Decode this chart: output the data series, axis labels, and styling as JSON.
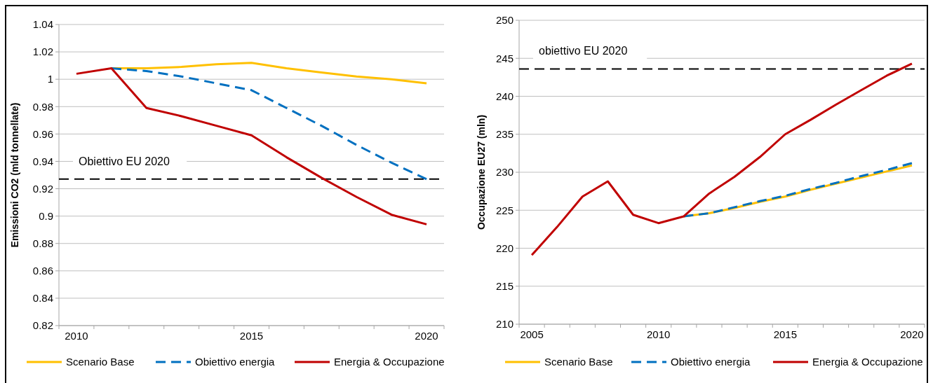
{
  "chart_data": [
    {
      "type": "line",
      "ylabel": "Emissioni CO2 (mld tonnellate)",
      "categories": [
        "2010",
        null,
        null,
        null,
        null,
        "2015",
        null,
        null,
        null,
        null,
        "2020"
      ],
      "ylim": [
        0.82,
        1.04
      ],
      "yticks": [
        0.82,
        0.84,
        0.86,
        0.88,
        0.9,
        0.92,
        0.94,
        0.96,
        0.98,
        1,
        1.02,
        1.04
      ],
      "grid": "y",
      "legend": "bottom",
      "marker": "none",
      "series": [
        {
          "name": "Scenario Base",
          "color": "#ffc000",
          "line_style": "solid",
          "values": [
            null,
            1.008,
            1.008,
            1.009,
            1.011,
            1.012,
            1.008,
            1.005,
            1.002,
            1.0,
            0.997
          ]
        },
        {
          "name": "Obiettivo energia",
          "color": "#0070c0",
          "line_style": "dashed",
          "values": [
            null,
            1.008,
            1.006,
            1.002,
            0.997,
            0.992,
            0.979,
            0.966,
            0.952,
            0.939,
            0.927
          ]
        },
        {
          "name": "Energia & Occupazione",
          "color": "#c00000",
          "line_style": "solid",
          "values": [
            1.004,
            1.008,
            0.979,
            0.973,
            0.966,
            0.959,
            0.943,
            0.928,
            0.914,
            0.901,
            0.894
          ]
        }
      ],
      "ref_lines": [
        {
          "axis": "y",
          "value": 0.927,
          "label": "Obiettivo EU 2020",
          "color": "#000000",
          "line_style": "dashed"
        }
      ]
    },
    {
      "type": "line",
      "ylabel": "Occupazione EU27  (mln)",
      "categories": [
        "2005",
        null,
        null,
        null,
        null,
        "2010",
        null,
        null,
        null,
        null,
        "2015",
        null,
        null,
        null,
        null,
        "2020"
      ],
      "ylim": [
        210,
        250
      ],
      "yticks": [
        210,
        215,
        220,
        225,
        230,
        235,
        240,
        245,
        250
      ],
      "grid": "y",
      "legend": "bottom",
      "marker": "none",
      "series": [
        {
          "name": "Scenario Base",
          "color": "#ffc000",
          "line_style": "solid",
          "values": [
            null,
            null,
            null,
            null,
            null,
            null,
            224.2,
            224.6,
            225.3,
            226.1,
            226.8,
            227.7,
            228.5,
            229.3,
            230.1,
            230.9
          ]
        },
        {
          "name": "Obiettivo energia",
          "color": "#0070c0",
          "line_style": "dashed",
          "values": [
            null,
            null,
            null,
            null,
            null,
            null,
            224.2,
            224.6,
            225.4,
            226.2,
            226.9,
            227.8,
            228.6,
            229.5,
            230.3,
            231.2
          ]
        },
        {
          "name": "Energia & Occupazione",
          "color": "#c00000",
          "line_style": "solid",
          "values": [
            219.1,
            222.8,
            226.8,
            228.8,
            224.4,
            223.3,
            224.2,
            227.2,
            229.4,
            232.0,
            235.0,
            236.9,
            238.9,
            240.8,
            242.7,
            244.3
          ]
        }
      ],
      "ref_lines": [
        {
          "axis": "y",
          "value": 243.6,
          "label": "obiettivo EU 2020",
          "color": "#000000",
          "line_style": "dashed"
        }
      ]
    }
  ]
}
